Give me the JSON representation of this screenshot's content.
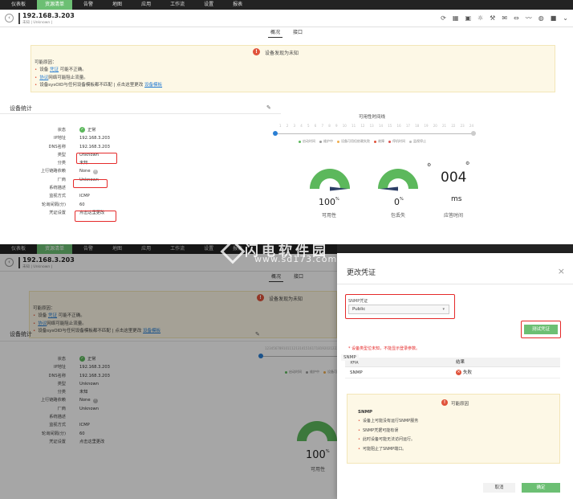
{
  "nav": [
    "仪表板",
    "资源清单",
    "告警",
    "地图",
    "应用",
    "工作流",
    "设置",
    "报表"
  ],
  "nav_active": 1,
  "host": {
    "title": "192.168.3.203",
    "subtitle": "未知 | Unknown |"
  },
  "tabs": {
    "overview": "概况",
    "interface": "接口"
  },
  "alert": {
    "title": "设备发现为未知",
    "cause_label": "可能原因：",
    "items": [
      {
        "pre": "设备 ",
        "link": "凭证",
        "post": " 可能不正确。"
      },
      {
        "pre": "",
        "link": "协议",
        "post": "网络可能阻止流量。"
      },
      {
        "pre": "设备sysOID与任何设备模板都不匹配  |  点击这里更改 ",
        "link": "设备模板",
        "post": ""
      }
    ]
  },
  "section_title": "设备统计",
  "props": [
    {
      "k": "状态",
      "v": "正常",
      "ok": true
    },
    {
      "k": "IP地址",
      "v": "192.168.3.203"
    },
    {
      "k": "DNS名称",
      "v": "192.168.3.203"
    },
    {
      "k": "类型",
      "v": "Unknown"
    },
    {
      "k": "分类",
      "v": "未知"
    },
    {
      "k": "上行链路依赖",
      "v": "None",
      "q": true
    },
    {
      "k": "厂商",
      "v": "Unknown"
    },
    {
      "k": "系统描述",
      "v": ""
    },
    {
      "k": "监视方式",
      "v": "ICMP"
    },
    {
      "k": "轮询间隔(分)",
      "v": "60"
    },
    {
      "k": "凭证设置",
      "v": "点击这里更改"
    }
  ],
  "timeline": {
    "title": "可用性时间线",
    "ticks": [
      "1",
      "2",
      "3",
      "4",
      "5",
      "6",
      "7",
      "8",
      "9",
      "10",
      "11",
      "12",
      "13",
      "14",
      "15",
      "16",
      "17",
      "18",
      "19",
      "20",
      "21",
      "22",
      "23",
      "24"
    ],
    "legend": [
      {
        "label": "启动时间",
        "color": "#5cb85c"
      },
      {
        "label": "维护中",
        "color": "#999999"
      },
      {
        "label": "设备可用但依赖失败",
        "color": "#f0ad4e"
      },
      {
        "label": "故障",
        "color": "#e0533b"
      },
      {
        "label": "停机时间",
        "color": "#d9534f"
      },
      {
        "label": "监视停止",
        "color": "#bbbbbb"
      }
    ]
  },
  "gauges": {
    "availability": {
      "value": "100",
      "unit": "%",
      "label": "可用性",
      "fraction": 1.0
    },
    "packet_loss": {
      "value": "0",
      "unit": "%",
      "label": "包丢失",
      "fraction": 0.0
    },
    "response": {
      "value": "004",
      "unit": "ms",
      "label": "应答时间"
    }
  },
  "dialog": {
    "title": "更改凭证",
    "close": "×",
    "snmp_label": "SNMP凭证",
    "snmp_value": "Public",
    "test_button": "测试凭证",
    "note": "* 设备类型位未知，不能显示登录参数。",
    "col_protocol": "协议",
    "col_result": "结果",
    "row_protocol": "SNMP",
    "row_result": "失败",
    "floating": "SNMP",
    "cause_title": "可能原因",
    "cause_subtitle": "SNMP",
    "cause_items": [
      "设备上可能没有运行SNMP服务",
      "SNMP凭据可能有误",
      "此时设备可能无法访问运行。",
      "可能阻止了SNMP端口。"
    ],
    "cancel": "取消",
    "confirm": "确定"
  },
  "watermark": {
    "text": "闪电软件园",
    "url": "www.sd173.com"
  },
  "colors": {
    "accent": "#6cbf73",
    "danger": "#e52a2a",
    "gauge": "#5cb85c",
    "gauge_bg": "#dddddd",
    "needle": "#2c3e66"
  }
}
